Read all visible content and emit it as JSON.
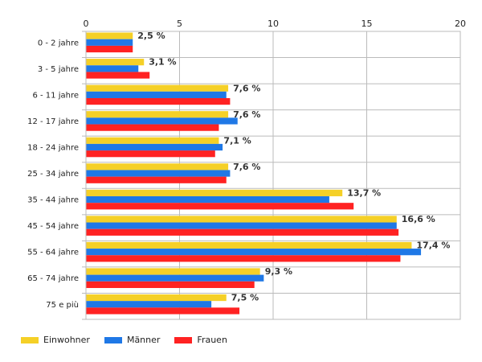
{
  "chart_data": {
    "type": "bar",
    "orientation": "horizontal",
    "categories": [
      "0 - 2 jahre",
      "3 - 5 jahre",
      "6 - 11 jahre",
      "12 - 17 jahre",
      "18 - 24 jahre",
      "25 - 34 jahre",
      "35 - 44 jahre",
      "45 - 54 jahre",
      "55 - 64 jahre",
      "65 - 74 jahre",
      "75 e più"
    ],
    "series": [
      {
        "name": "Einwohner",
        "color": "#f5d027",
        "values": [
          2.5,
          3.1,
          7.6,
          7.6,
          7.1,
          7.6,
          13.7,
          16.6,
          17.4,
          9.3,
          7.5
        ],
        "labels": [
          "2,5 %",
          "3,1 %",
          "7,6 %",
          "7,6 %",
          "7,1 %",
          "7,6 %",
          "13,7 %",
          "16,6 %",
          "17,4 %",
          "9,3 %",
          "7,5 %"
        ]
      },
      {
        "name": "Männer",
        "color": "#1f78e6",
        "values": [
          2.5,
          2.8,
          7.5,
          8.1,
          7.3,
          7.7,
          13.0,
          16.6,
          17.9,
          9.5,
          6.7
        ]
      },
      {
        "name": "Frauen",
        "color": "#ff2222",
        "values": [
          2.5,
          3.4,
          7.7,
          7.1,
          6.9,
          7.5,
          14.3,
          16.7,
          16.8,
          9.0,
          8.2
        ]
      }
    ],
    "xlim": [
      0,
      20
    ],
    "xticks": [
      0,
      5,
      10,
      15,
      20
    ],
    "xtick_labels": [
      "0",
      "5",
      "10",
      "15",
      "20"
    ],
    "grid": true,
    "legend_position": "bottom-left"
  }
}
